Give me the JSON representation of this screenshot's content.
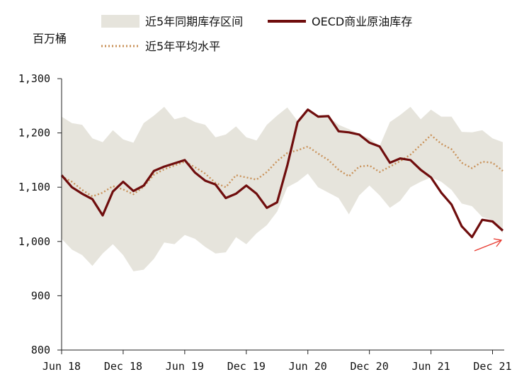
{
  "chart_data": {
    "type": "line",
    "ylabel": "百万桶",
    "ylim": [
      800,
      1300
    ],
    "yticks": [
      800,
      900,
      1000,
      1100,
      1200,
      1300
    ],
    "ytick_labels": [
      "800",
      "900",
      "1,000",
      "1,100",
      "1,200",
      "1,300"
    ],
    "xtick_labels": [
      "Jun 18",
      "Dec 18",
      "Jun 19",
      "Dec 19",
      "Jun 20",
      "Dec 20",
      "Jun 21",
      "Dec 21"
    ],
    "xtick_index": [
      0,
      6,
      12,
      18,
      24,
      30,
      36,
      42
    ],
    "x": [
      "2018-06",
      "2018-07",
      "2018-08",
      "2018-09",
      "2018-10",
      "2018-11",
      "2018-12",
      "2019-01",
      "2019-02",
      "2019-03",
      "2019-04",
      "2019-05",
      "2019-06",
      "2019-07",
      "2019-08",
      "2019-09",
      "2019-10",
      "2019-11",
      "2019-12",
      "2020-01",
      "2020-02",
      "2020-03",
      "2020-04",
      "2020-05",
      "2020-06",
      "2020-07",
      "2020-08",
      "2020-09",
      "2020-10",
      "2020-11",
      "2020-12",
      "2021-01",
      "2021-02",
      "2021-03",
      "2021-04",
      "2021-05",
      "2021-06",
      "2021-07",
      "2021-08",
      "2021-09",
      "2021-10",
      "2021-11",
      "2021-12",
      "2022-01"
    ],
    "grid": false,
    "legend_position": "top",
    "series": [
      {
        "name": "近5年同期库存区间",
        "type": "band",
        "color": "#e6e4dc",
        "upper": [
          1230,
          1218,
          1215,
          1190,
          1183,
          1205,
          1188,
          1182,
          1218,
          1232,
          1248,
          1225,
          1230,
          1220,
          1215,
          1192,
          1197,
          1212,
          1192,
          1186,
          1215,
          1232,
          1247,
          1222,
          1242,
          1230,
          1230,
          1215,
          1207,
          1198,
          1190,
          1176,
          1220,
          1233,
          1248,
          1225,
          1243,
          1230,
          1230,
          1202,
          1201,
          1205,
          1190,
          1183
        ],
        "lower": [
          1005,
          985,
          975,
          955,
          978,
          995,
          975,
          945,
          948,
          968,
          998,
          995,
          1012,
          1005,
          990,
          978,
          980,
          1008,
          995,
          1015,
          1030,
          1055,
          1100,
          1110,
          1125,
          1100,
          1090,
          1080,
          1050,
          1085,
          1103,
          1085,
          1062,
          1075,
          1100,
          1110,
          1118,
          1110,
          1095,
          1070,
          1065,
          1045,
          1040,
          1015
        ]
      },
      {
        "name": "OECD商业原油库存",
        "type": "line",
        "color": "#6f0d0d",
        "values": [
          1122,
          1100,
          1088,
          1078,
          1048,
          1092,
          1110,
          1093,
          1103,
          1130,
          1138,
          1144,
          1150,
          1127,
          1112,
          1105,
          1080,
          1088,
          1103,
          1088,
          1062,
          1072,
          1140,
          1220,
          1243,
          1230,
          1231,
          1203,
          1201,
          1197,
          1182,
          1175,
          1145,
          1153,
          1150,
          1132,
          1118,
          1090,
          1068,
          1028,
          1008,
          1040,
          1037,
          1020
        ]
      },
      {
        "name": "近5年平均水平",
        "type": "line",
        "color": "#c9925a",
        "dash": "dotted",
        "values": [
          1120,
          1110,
          1095,
          1083,
          1090,
          1102,
          1096,
          1087,
          1101,
          1123,
          1133,
          1140,
          1147,
          1137,
          1125,
          1108,
          1100,
          1122,
          1118,
          1114,
          1128,
          1148,
          1163,
          1168,
          1175,
          1162,
          1150,
          1132,
          1120,
          1138,
          1140,
          1128,
          1138,
          1148,
          1160,
          1178,
          1196,
          1180,
          1170,
          1145,
          1135,
          1147,
          1145,
          1130
        ]
      }
    ]
  }
}
